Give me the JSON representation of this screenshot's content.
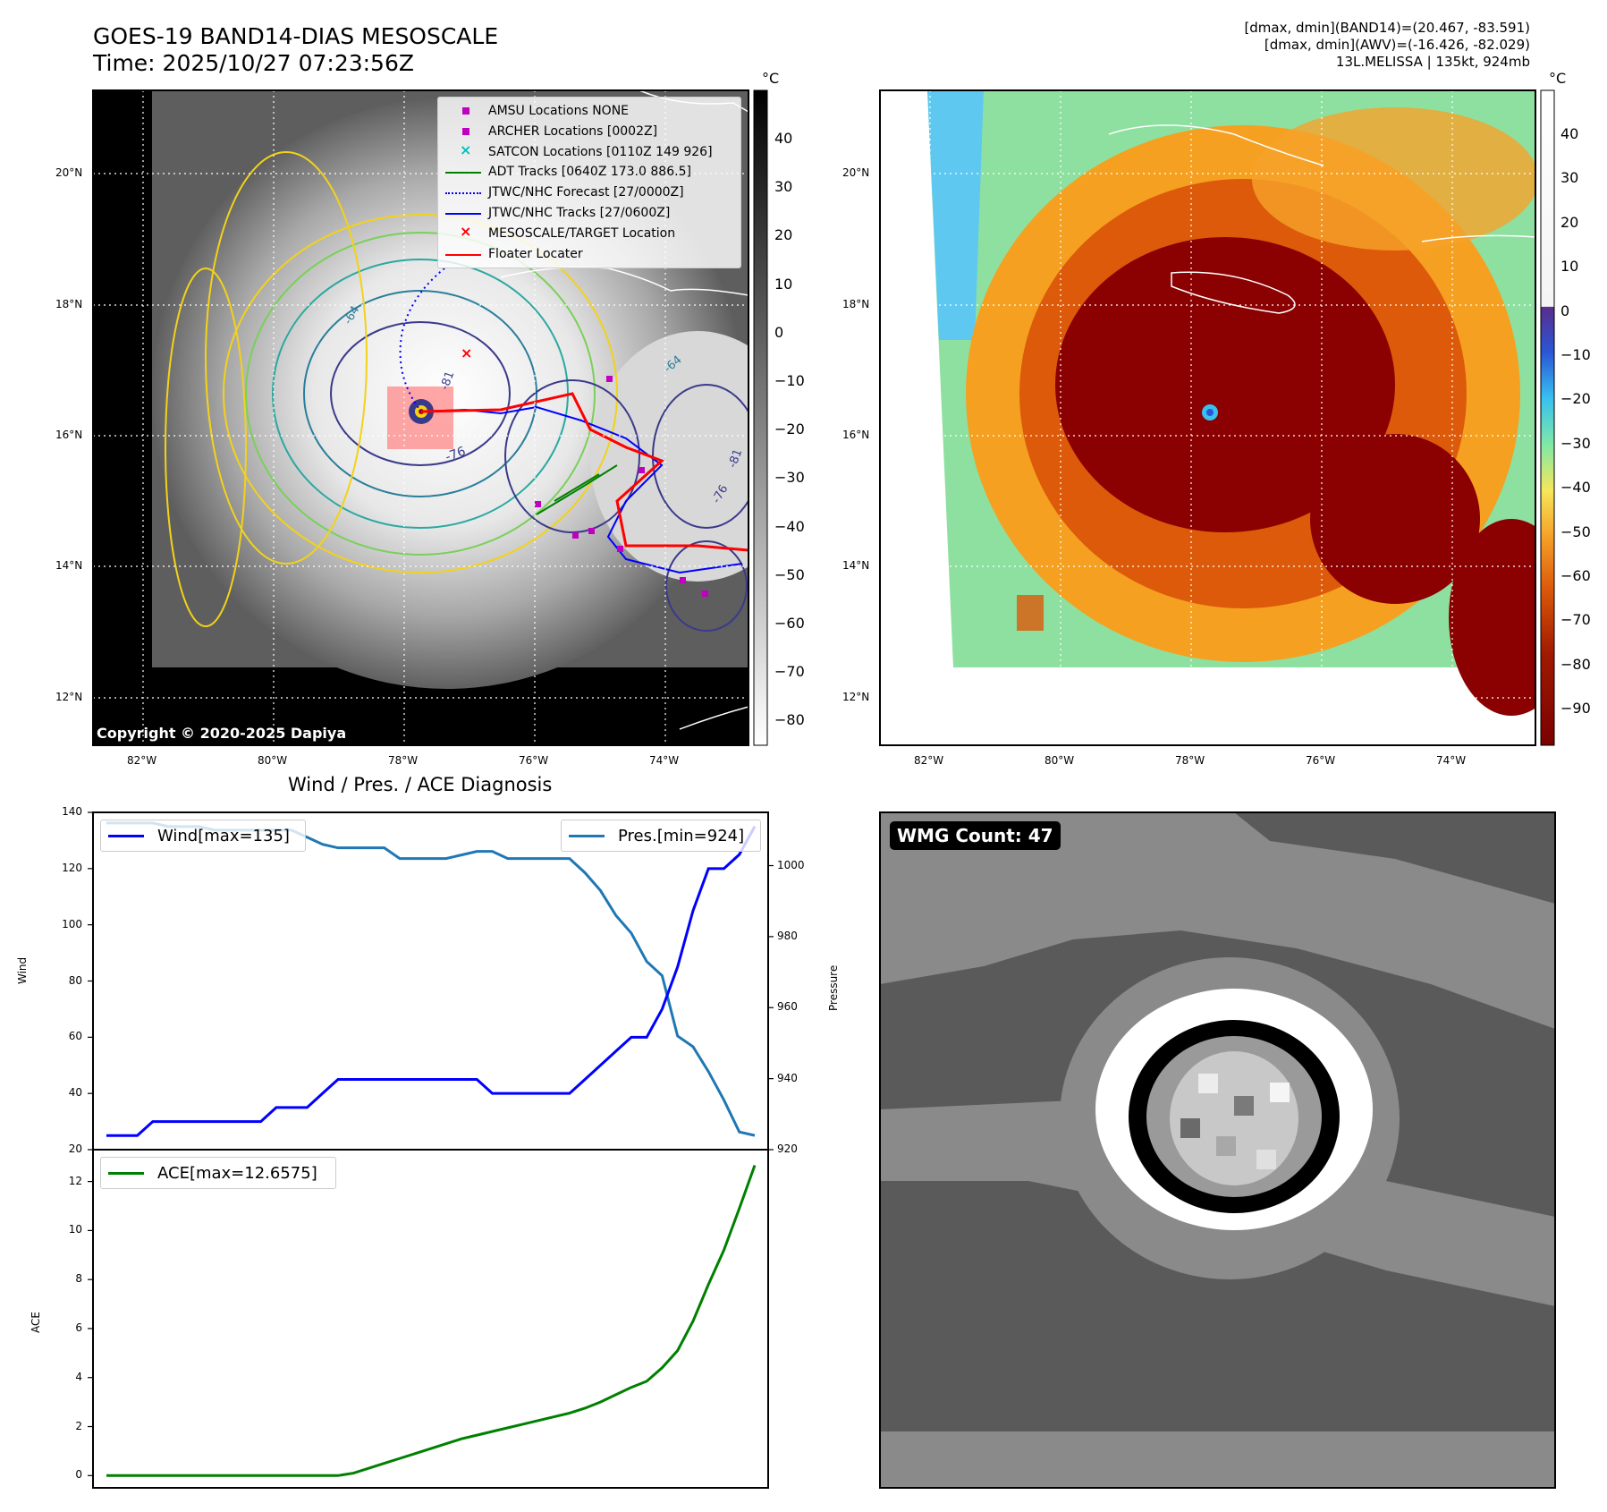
{
  "header": {
    "title_line1": "GOES-19 BAND14-DIAS MESOSCALE",
    "title_line2": "Time: 2025/10/27 07:23:56Z",
    "info_line1": "[dmax, dmin](BAND14)=(20.467, -83.591)",
    "info_line2": "[dmax, dmin](AWV)=(-16.426, -82.029)",
    "info_line3": "13L.MELISSA | 135kt, 924mb"
  },
  "map": {
    "lat_labels": [
      "20°N",
      "18°N",
      "16°N",
      "14°N",
      "12°N"
    ],
    "lon_labels": [
      "82°W",
      "80°W",
      "78°W",
      "76°W",
      "74°W"
    ],
    "copyright": "Copyright © 2020-2025 Dapiya",
    "contour_labels": [
      "-64",
      "-76",
      "-81",
      "-64",
      "-81",
      "-76"
    ],
    "legend": [
      {
        "label": "AMSU Locations NONE",
        "color": "#bf00bf"
      },
      {
        "label": "ARCHER Locations [0002Z]",
        "color": "#bf00bf"
      },
      {
        "label": "SATCON Locations [0110Z 149 926]",
        "color": "#00bfbf"
      },
      {
        "label": "ADT Tracks [0640Z 173.0 886.5]",
        "color": "#008000"
      },
      {
        "label": "JTWC/NHC Forecast [27/0000Z]",
        "color": "#0000ff"
      },
      {
        "label": "JTWC/NHC Tracks [27/0600Z]",
        "color": "#0000ff"
      },
      {
        "label": "MESOSCALE/TARGET Location",
        "color": "#ff0000"
      },
      {
        "label": "Floater Locater",
        "color": "#ff0000"
      }
    ],
    "colorbar_unit": "°C",
    "colorbar_gray_ticks": [
      "40",
      "30",
      "20",
      "10",
      "0",
      "−10",
      "−20",
      "−30",
      "−40",
      "−50",
      "−60",
      "−70",
      "−80"
    ],
    "colorbar_jet_ticks": [
      "40",
      "30",
      "20",
      "10",
      "0",
      "−10",
      "−20",
      "−30",
      "−40",
      "−50",
      "−60",
      "−70",
      "−80",
      "−90"
    ]
  },
  "wmg": {
    "badge": "WMG Count: 47"
  },
  "colors": {
    "wind": "#0000ff",
    "pressure": "#1f77b4",
    "ace": "#008000",
    "eye_red": "#8b0000"
  },
  "chart_data": [
    {
      "type": "line",
      "title": "Wind / Pres. / ACE Diagnosis",
      "xlabel": "",
      "ylabel": "Wind",
      "ylabel_right": "Pressure",
      "ylim": [
        20,
        140
      ],
      "ylim_right": [
        920,
        1015
      ],
      "yticks": [
        "140",
        "120",
        "100",
        "80",
        "60",
        "40",
        "20"
      ],
      "yticks_right": [
        "1000",
        "980",
        "960",
        "940",
        "920"
      ],
      "x": [
        0,
        1,
        2,
        3,
        4,
        5,
        6,
        7,
        8,
        9,
        10,
        11,
        12,
        13,
        14,
        15,
        16,
        17,
        18,
        19,
        20,
        21,
        22,
        23,
        24,
        25,
        26,
        27,
        28,
        29,
        30,
        31,
        32,
        33,
        34,
        35,
        36,
        37,
        38,
        39,
        40,
        41,
        42
      ],
      "series": [
        {
          "name": "Wind",
          "legend": "Wind[max=135]",
          "values": [
            25,
            25,
            25,
            30,
            30,
            30,
            30,
            30,
            30,
            30,
            30,
            35,
            35,
            35,
            40,
            45,
            45,
            45,
            45,
            45,
            45,
            45,
            45,
            45,
            45,
            40,
            40,
            40,
            40,
            40,
            40,
            45,
            50,
            55,
            60,
            60,
            70,
            85,
            105,
            120,
            120,
            125,
            135
          ]
        },
        {
          "name": "Pressure",
          "legend": "Pres.[min=924]",
          "values": [
            1012,
            1012,
            1012,
            1012,
            1011,
            1011,
            1011,
            1010,
            1010,
            1010,
            1010,
            1010,
            1010,
            1008,
            1006,
            1005,
            1005,
            1005,
            1005,
            1002,
            1002,
            1002,
            1002,
            1003,
            1004,
            1004,
            1002,
            1002,
            1002,
            1002,
            1002,
            998,
            993,
            986,
            981,
            973,
            969,
            952,
            949,
            942,
            934,
            925,
            924
          ]
        }
      ]
    },
    {
      "type": "line",
      "xlabel": "",
      "ylabel": "ACE",
      "ylim": [
        -0.5,
        13.3
      ],
      "yticks": [
        "12",
        "10",
        "8",
        "6",
        "4",
        "2",
        "0"
      ],
      "x": [
        0,
        1,
        2,
        3,
        4,
        5,
        6,
        7,
        8,
        9,
        10,
        11,
        12,
        13,
        14,
        15,
        16,
        17,
        18,
        19,
        20,
        21,
        22,
        23,
        24,
        25,
        26,
        27,
        28,
        29,
        30,
        31,
        32,
        33,
        34,
        35,
        36,
        37,
        38,
        39,
        40,
        41,
        42
      ],
      "series": [
        {
          "name": "ACE",
          "legend": "ACE[max=12.6575]",
          "values": [
            0,
            0,
            0,
            0,
            0,
            0,
            0,
            0,
            0,
            0,
            0,
            0,
            0,
            0,
            0,
            0,
            0.1,
            0.3,
            0.5,
            0.7,
            0.9,
            1.1,
            1.3,
            1.5,
            1.65,
            1.8,
            1.95,
            2.1,
            2.25,
            2.4,
            2.55,
            2.75,
            3.0,
            3.3,
            3.6,
            3.85,
            4.4,
            5.1,
            6.3,
            7.8,
            9.2,
            10.9,
            12.66
          ]
        }
      ]
    }
  ]
}
